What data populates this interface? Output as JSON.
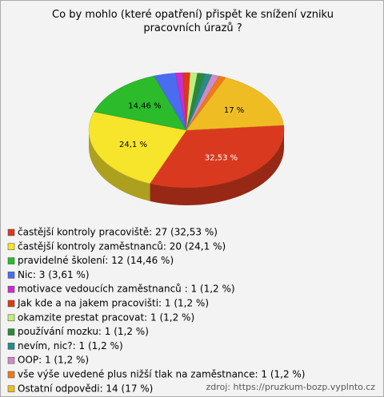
{
  "chart_data": {
    "type": "pie",
    "title": "Co by mohlo (které opatření) přispět ke snížení vzniku pracovních úrazů ?",
    "categories": [
      "častější kontroly pracoviště: 27 (32,53 %)",
      "častější kontroly zaměstnanců: 20 (24,1 %)",
      "pravidelné školení: 12 (14,46 %)",
      "Nic: 3 (3,61 %)",
      "motivace vedoucích zaměstnanců : 1 (1,2 %)",
      "Jak kde a na jakem pracovišti: 1 (1,2 %)",
      "okamzite prestat pracovat: 1 (1,2 %)",
      "používání mozku: 1 (1,2 %)",
      "nevím, nic?: 1 (1,2 %)",
      "OOP: 1 (1,2 %)",
      "vše výše uvedené plus nižší tlak na zaměstnance: 1 (1,2 %)",
      "Ostatní odpovědi: 14 (17 %)"
    ],
    "values": [
      32.53,
      24.1,
      14.46,
      3.61,
      1.2,
      1.2,
      1.2,
      1.2,
      1.2,
      1.2,
      1.2,
      17
    ],
    "value_labels": [
      "32,53 %",
      "24,1 %",
      "14,46 %",
      null,
      null,
      null,
      null,
      null,
      null,
      null,
      null,
      "17 %"
    ],
    "colors": [
      "#d93a1f",
      "#f7e52b",
      "#2bbb2b",
      "#4a6cf0",
      "#cc2ccc",
      "#dd3a12",
      "#c2ee7e",
      "#2a8a3a",
      "#2a8a8a",
      "#cc8ccc",
      "#ee7a1a",
      "#efbd23"
    ],
    "source": "zdroj: https://pruzkum-bozp.vyplnto.cz"
  }
}
